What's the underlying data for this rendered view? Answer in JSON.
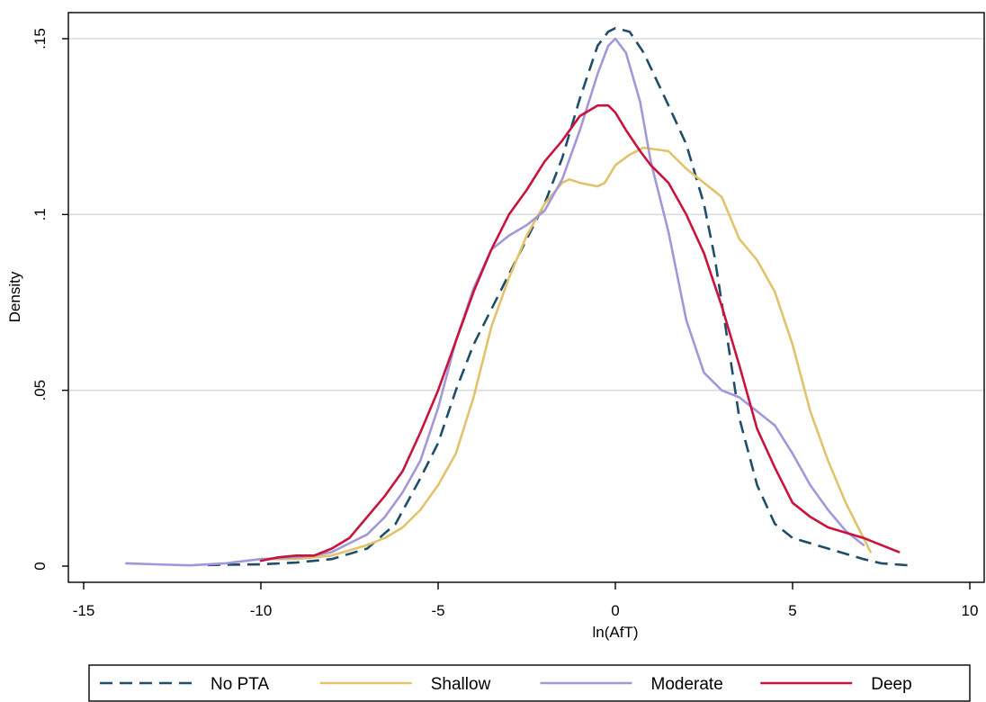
{
  "chart_data": {
    "type": "line",
    "title": "",
    "xlabel": "ln(AfT)",
    "ylabel": "Density",
    "xlim": [
      -15,
      10
    ],
    "ylim": [
      0,
      0.15
    ],
    "x_ticks": [
      {
        "value": -15,
        "label": "-15"
      },
      {
        "value": -10,
        "label": "-10"
      },
      {
        "value": -5,
        "label": "-5"
      },
      {
        "value": 0,
        "label": "0"
      },
      {
        "value": 5,
        "label": "5"
      },
      {
        "value": 10,
        "label": "10"
      }
    ],
    "y_ticks": [
      {
        "value": 0,
        "label": "0"
      },
      {
        "value": 0.05,
        "label": ".05"
      },
      {
        "value": 0.1,
        "label": ".1"
      },
      {
        "value": 0.15,
        "label": ".15"
      }
    ],
    "grid": "horizontal",
    "legend_position": "bottom",
    "series": [
      {
        "name": "No PTA",
        "color": "#1f4e6b",
        "dash": "dashed",
        "points": [
          [
            -11.5,
            0.0003
          ],
          [
            -10,
            0.0005
          ],
          [
            -9,
            0.001
          ],
          [
            -8,
            0.002
          ],
          [
            -7,
            0.005
          ],
          [
            -6.2,
            0.012
          ],
          [
            -5.5,
            0.025
          ],
          [
            -5,
            0.035
          ],
          [
            -4.5,
            0.05
          ],
          [
            -4,
            0.063
          ],
          [
            -3.5,
            0.073
          ],
          [
            -3,
            0.083
          ],
          [
            -2.5,
            0.093
          ],
          [
            -2,
            0.103
          ],
          [
            -1.5,
            0.116
          ],
          [
            -1,
            0.133
          ],
          [
            -0.5,
            0.148
          ],
          [
            -0.2,
            0.152
          ],
          [
            0,
            0.153
          ],
          [
            0.4,
            0.152
          ],
          [
            0.8,
            0.146
          ],
          [
            1.5,
            0.131
          ],
          [
            2,
            0.12
          ],
          [
            2.5,
            0.103
          ],
          [
            2.8,
            0.088
          ],
          [
            3.2,
            0.062
          ],
          [
            3.5,
            0.042
          ],
          [
            4,
            0.023
          ],
          [
            4.5,
            0.012
          ],
          [
            5,
            0.008
          ],
          [
            6,
            0.005
          ],
          [
            7,
            0.002
          ],
          [
            7.5,
            0.0008
          ],
          [
            8.3,
            0.0002
          ]
        ]
      },
      {
        "name": "Shallow",
        "color": "#e2c26a",
        "dash": "solid",
        "points": [
          [
            -10,
            0.002
          ],
          [
            -9,
            0.002
          ],
          [
            -8,
            0.003
          ],
          [
            -7,
            0.006
          ],
          [
            -6.5,
            0.008
          ],
          [
            -6,
            0.011
          ],
          [
            -5.5,
            0.016
          ],
          [
            -5,
            0.023
          ],
          [
            -4.5,
            0.032
          ],
          [
            -4,
            0.048
          ],
          [
            -3.5,
            0.068
          ],
          [
            -3,
            0.082
          ],
          [
            -2.5,
            0.094
          ],
          [
            -2,
            0.103
          ],
          [
            -1.5,
            0.109
          ],
          [
            -1.3,
            0.11
          ],
          [
            -1,
            0.109
          ],
          [
            -0.5,
            0.108
          ],
          [
            -0.3,
            0.109
          ],
          [
            0,
            0.114
          ],
          [
            0.4,
            0.117
          ],
          [
            0.8,
            0.119
          ],
          [
            1.5,
            0.118
          ],
          [
            2,
            0.113
          ],
          [
            3,
            0.105
          ],
          [
            3.5,
            0.093
          ],
          [
            4,
            0.087
          ],
          [
            4.5,
            0.078
          ],
          [
            5,
            0.063
          ],
          [
            5.5,
            0.044
          ],
          [
            6,
            0.03
          ],
          [
            6.5,
            0.018
          ],
          [
            7,
            0.008
          ],
          [
            7.2,
            0.004
          ]
        ]
      },
      {
        "name": "Moderate",
        "color": "#a497d9",
        "dash": "solid",
        "points": [
          [
            -13.8,
            0.0008
          ],
          [
            -13,
            0.0005
          ],
          [
            -12,
            0.0002
          ],
          [
            -11,
            0.0008
          ],
          [
            -10,
            0.002
          ],
          [
            -9,
            0.0025
          ],
          [
            -8.5,
            0.003
          ],
          [
            -8,
            0.004
          ],
          [
            -7,
            0.009
          ],
          [
            -6.5,
            0.014
          ],
          [
            -6,
            0.021
          ],
          [
            -5.5,
            0.03
          ],
          [
            -5,
            0.045
          ],
          [
            -4.5,
            0.064
          ],
          [
            -4,
            0.079
          ],
          [
            -3.5,
            0.09
          ],
          [
            -3,
            0.094
          ],
          [
            -2.5,
            0.097
          ],
          [
            -2,
            0.101
          ],
          [
            -1.5,
            0.11
          ],
          [
            -1,
            0.124
          ],
          [
            -0.5,
            0.14
          ],
          [
            -0.2,
            0.148
          ],
          [
            0,
            0.15
          ],
          [
            0.3,
            0.146
          ],
          [
            0.7,
            0.132
          ],
          [
            1,
            0.115
          ],
          [
            1.5,
            0.095
          ],
          [
            2,
            0.07
          ],
          [
            2.5,
            0.055
          ],
          [
            3,
            0.05
          ],
          [
            3.5,
            0.048
          ],
          [
            4,
            0.044
          ],
          [
            4.5,
            0.04
          ],
          [
            5,
            0.032
          ],
          [
            5.5,
            0.023
          ],
          [
            6,
            0.016
          ],
          [
            6.5,
            0.01
          ],
          [
            7,
            0.006
          ]
        ]
      },
      {
        "name": "Deep",
        "color": "#c8143c",
        "dash": "solid",
        "points": [
          [
            -10,
            0.0015
          ],
          [
            -9.5,
            0.0025
          ],
          [
            -9,
            0.003
          ],
          [
            -8.5,
            0.003
          ],
          [
            -8,
            0.005
          ],
          [
            -7.5,
            0.008
          ],
          [
            -7,
            0.014
          ],
          [
            -6.5,
            0.02
          ],
          [
            -6,
            0.027
          ],
          [
            -5.5,
            0.038
          ],
          [
            -5,
            0.05
          ],
          [
            -4.5,
            0.064
          ],
          [
            -4,
            0.078
          ],
          [
            -3.5,
            0.09
          ],
          [
            -3,
            0.1
          ],
          [
            -2.5,
            0.107
          ],
          [
            -2,
            0.115
          ],
          [
            -1.5,
            0.121
          ],
          [
            -1,
            0.128
          ],
          [
            -0.5,
            0.131
          ],
          [
            -0.2,
            0.131
          ],
          [
            0,
            0.129
          ],
          [
            0.3,
            0.124
          ],
          [
            0.7,
            0.118
          ],
          [
            1,
            0.114
          ],
          [
            1.5,
            0.109
          ],
          [
            2,
            0.1
          ],
          [
            2.5,
            0.089
          ],
          [
            3,
            0.074
          ],
          [
            3.5,
            0.057
          ],
          [
            4,
            0.039
          ],
          [
            4.5,
            0.028
          ],
          [
            5,
            0.018
          ],
          [
            5.5,
            0.014
          ],
          [
            6,
            0.011
          ],
          [
            7,
            0.008
          ],
          [
            7.5,
            0.006
          ],
          [
            8,
            0.004
          ]
        ]
      }
    ]
  }
}
